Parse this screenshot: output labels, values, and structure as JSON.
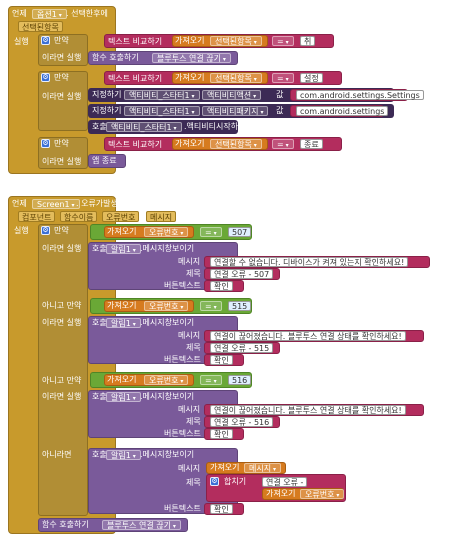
{
  "event1": {
    "keyword": "언제",
    "component": "옵션1",
    "event_name": ". 선택한후에",
    "param": "선택된항목",
    "do_label": "실행",
    "if_label": "만약",
    "then_label": "이라면 실행",
    "compare_label": "텍스트 비교하기",
    "get_label": "가져오기",
    "get_var": "선택된항목",
    "eq": "=",
    "val1": "취",
    "call_proc_label": "함수 호출하기",
    "proc_name": "블루투스 연결 끊기",
    "val2": "설정",
    "set_label": "지정하기",
    "activity_starter": "액티비티_스타터1",
    "prop_action": "액티비티액션",
    "to_label": "값",
    "action_value": "com.android.settings.Settings",
    "prop_package": "액티비티패키지",
    "package_value": "com.android.settings",
    "call_label": "호출",
    "start_method": ".액티비티시작하기",
    "val3": "종료",
    "close_app": "앱 종료"
  },
  "event2": {
    "keyword": "언제",
    "component": "Screen1",
    "event_name": ". 오류가발생했을때",
    "params": [
      "컴포넌트",
      "함수이름",
      "오류번호",
      "메시지"
    ],
    "do_label": "실행",
    "if_label": "만약",
    "then_label": "이라면 실행",
    "else_if_label": "아니고 만약",
    "else_label": "아니라면",
    "get_label": "가져오기",
    "err_var": "오류번호",
    "msg_var": "메시지",
    "eq": "=",
    "call_label": "호출",
    "notifier": "알림1",
    "show_alert": ".메시지창보이기",
    "msg_label": "메시지",
    "title_label": "제목",
    "button_label": "버튼텍스트",
    "ok": "확인",
    "code1": "507",
    "msg1": "연결할 수 없습니다. 디바이스가 켜져 있는지 확인하세요!",
    "title1": "연결 오류 - 507",
    "code2": "515",
    "msg2": "연결이 끊어졌습니다. 블루투스 연결 상태를 확인하세요!",
    "title2": "연결 오류 - 515",
    "code3": "516",
    "msg3": "연결이 끊어졌습니다. 블루투스 연결 상태를 확인하세요!",
    "title3": "연결 오류 - 516",
    "join_label": "합치기",
    "join_text": "연결 오류 - ",
    "call_proc_label": "함수 호출하기",
    "proc_name": "블루투스 연결 끊기"
  }
}
